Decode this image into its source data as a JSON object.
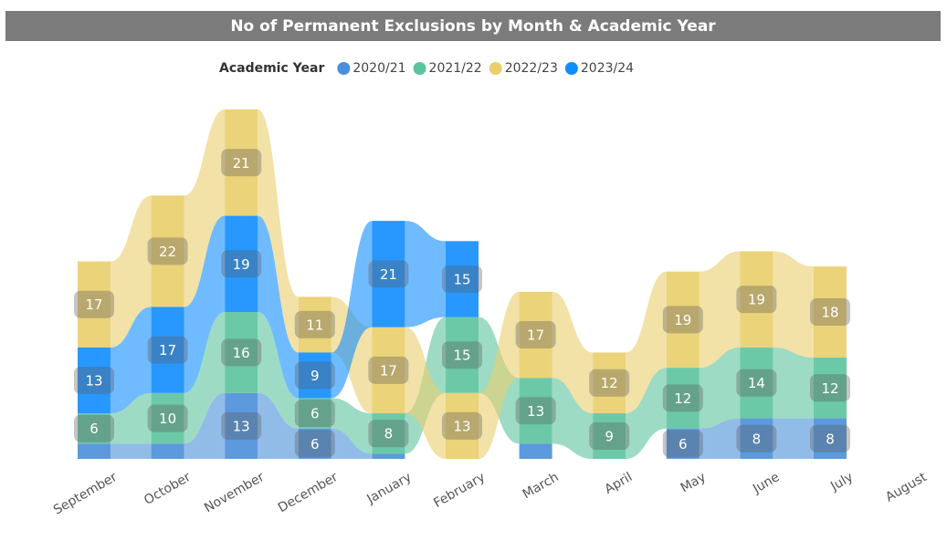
{
  "chart_data": {
    "type": "ribbon",
    "title": "No of Permanent Exclusions by Month & Academic Year",
    "legend_title": "Academic Year",
    "categories": [
      "September",
      "October",
      "November",
      "December",
      "January",
      "February",
      "March",
      "April",
      "May",
      "June",
      "July",
      "August"
    ],
    "series": [
      {
        "name": "2020/21",
        "color": "#4a8fd9",
        "values": [
          3,
          3,
          13,
          6,
          1,
          null,
          3,
          null,
          6,
          8,
          8,
          null
        ]
      },
      {
        "name": "2021/22",
        "color": "#5cc39f",
        "values": [
          6,
          10,
          16,
          6,
          8,
          15,
          13,
          9,
          12,
          14,
          12,
          null
        ]
      },
      {
        "name": "2022/23",
        "color": "#e9ce6c",
        "values": [
          17,
          22,
          21,
          11,
          17,
          13,
          17,
          12,
          19,
          19,
          18,
          null
        ]
      },
      {
        "name": "2023/24",
        "color": "#118dff",
        "values": [
          13,
          17,
          19,
          9,
          21,
          15,
          null,
          null,
          null,
          null,
          null,
          null
        ]
      }
    ]
  }
}
